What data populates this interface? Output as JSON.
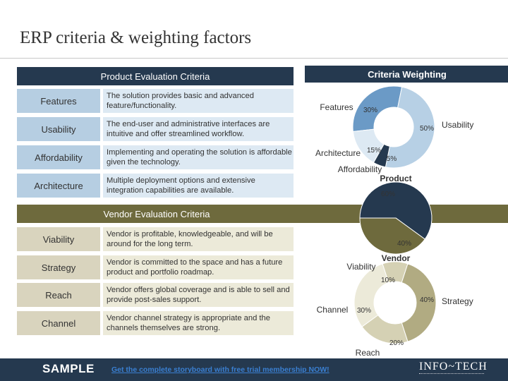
{
  "slide": {
    "title": "ERP criteria & weighting factors"
  },
  "product": {
    "header": "Product Evaluation Criteria",
    "rows": [
      {
        "label": "Features",
        "desc": "The solution provides basic and advanced feature/functionality."
      },
      {
        "label": "Usability",
        "desc": "The end-user and administrative interfaces are intuitive and offer streamlined workflow."
      },
      {
        "label": "Affordability",
        "desc": "Implementing and operating the solution is affordable given the technology."
      },
      {
        "label": "Architecture",
        "desc": "Multiple deployment options and extensive integration capabilities are available."
      }
    ]
  },
  "vendor": {
    "header": "Vendor Evaluation Criteria",
    "rows": [
      {
        "label": "Viability",
        "desc": "Vendor is profitable, knowledgeable, and will be around for the long term."
      },
      {
        "label": "Strategy",
        "desc": "Vendor is committed to the space and has a future product and portfolio roadmap."
      },
      {
        "label": "Reach",
        "desc": "Vendor offers global coverage and is able to sell and provide post-sales support."
      },
      {
        "label": "Channel",
        "desc": "Vendor channel strategy is appropriate and the channels themselves are strong."
      }
    ]
  },
  "weighting": {
    "header": "Criteria Weighting"
  },
  "colors": {
    "navy": "#25394f",
    "olive": "#6e6a3d",
    "blue_mid": "#6b9ac6",
    "blue_light": "#b7d0e5",
    "blue_pale": "#dde9f3",
    "tan": "#b1ab82",
    "tan_light": "#d5d1b4",
    "tan_pale": "#ecead9"
  },
  "chart_data": [
    {
      "type": "pie",
      "title": "",
      "categories": [
        "Features",
        "Usability",
        "Affordability",
        "Architecture"
      ],
      "values": [
        30,
        50,
        5,
        15
      ],
      "data_labels": [
        "30%",
        "50%",
        "5%",
        "15%"
      ]
    },
    {
      "type": "pie",
      "title": "",
      "categories": [
        "Product",
        "Vendor"
      ],
      "values": [
        60,
        40
      ],
      "data_labels": [
        "60%",
        "40%"
      ]
    },
    {
      "type": "pie",
      "title": "",
      "categories": [
        "Viability",
        "Strategy",
        "Reach",
        "Channel"
      ],
      "values": [
        10,
        40,
        20,
        30
      ],
      "data_labels": [
        "10%",
        "40%",
        "20%",
        "30%"
      ]
    }
  ],
  "footer": {
    "sample": "SAMPLE",
    "cta": "Get the complete storyboard with free trial membership NOW!",
    "brand": "INFO~TECH"
  }
}
